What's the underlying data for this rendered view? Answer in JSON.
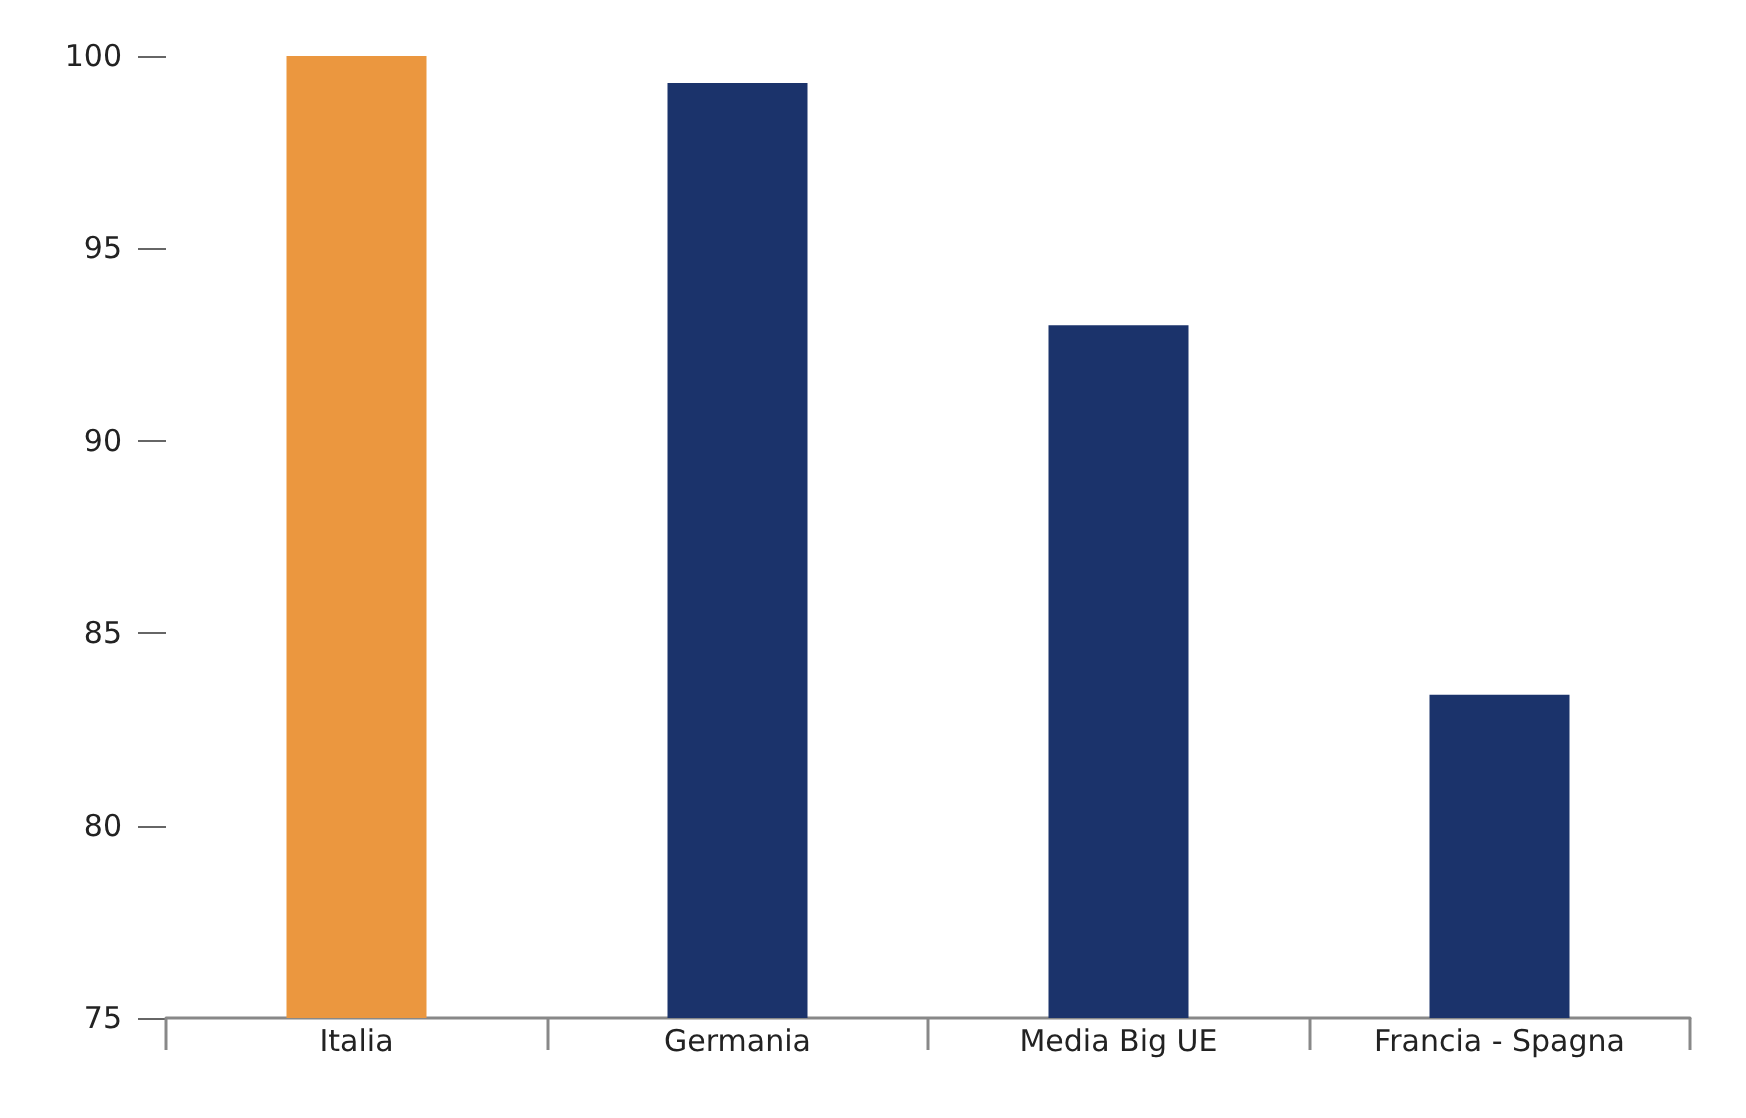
{
  "chart_data": {
    "type": "bar",
    "categories": [
      "Italia",
      "Germania",
      "Media Big UE",
      "Francia - Spagna"
    ],
    "values": [
      100,
      99.3,
      93,
      83.4
    ],
    "colors": [
      "#eb973f",
      "#1b336b",
      "#1b336b",
      "#1b336b"
    ],
    "ylim": [
      75,
      100
    ],
    "yticks": [
      75,
      80,
      85,
      90,
      95,
      100
    ]
  }
}
